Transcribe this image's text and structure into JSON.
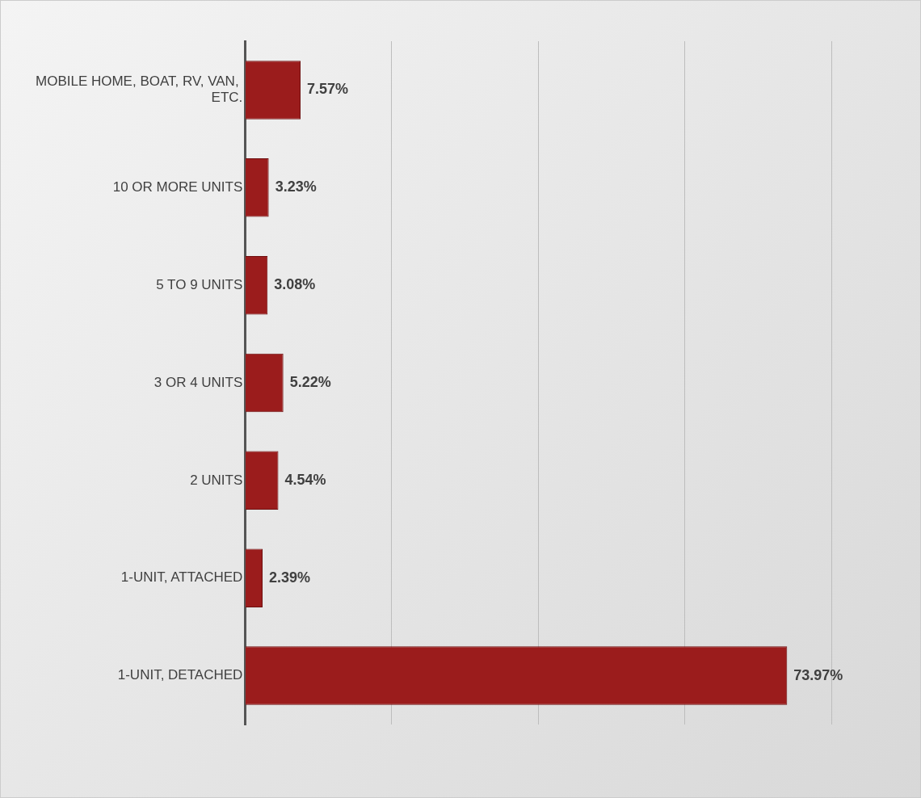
{
  "chart_data": {
    "type": "bar",
    "orientation": "horizontal",
    "categories": [
      "MOBILE HOME, BOAT, RV, VAN, ETC.",
      "10 OR MORE UNITS",
      "5 TO 9 UNITS",
      "3 OR 4 UNITS",
      "2 UNITS",
      "1-UNIT, ATTACHED",
      "1-UNIT, DETACHED"
    ],
    "values": [
      7.57,
      3.23,
      3.08,
      5.22,
      4.54,
      2.39,
      73.97
    ],
    "value_labels": [
      "7.57%",
      "3.23%",
      "3.08%",
      "5.22%",
      "4.54%",
      "2.39%",
      "73.97%"
    ],
    "color": "#9b1c1c",
    "xlim": [
      0,
      80
    ],
    "xticks": [
      {
        "value": 0,
        "label": null
      },
      {
        "value": 20,
        "label": null
      },
      {
        "value": 40,
        "label": null
      },
      {
        "value": 60,
        "label": null
      },
      {
        "value": 80,
        "label": null
      }
    ],
    "tick_labels": "y",
    "grid": "x",
    "legend": false
  }
}
